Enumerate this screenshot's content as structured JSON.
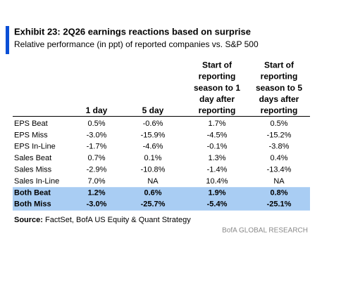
{
  "header": {
    "title": "Exhibit 23: 2Q26 earnings reactions based on surprise",
    "subtitle": "Relative performance (in ppt) of reported companies vs. S&P 500"
  },
  "table": {
    "columns": [
      {
        "lines": [
          "1 day"
        ]
      },
      {
        "lines": [
          "5 day"
        ]
      },
      {
        "lines": [
          "Start of",
          "reporting",
          "season to 1",
          "day after",
          "reporting"
        ]
      },
      {
        "lines": [
          "Start of",
          "reporting",
          "season to 5",
          "days after",
          "reporting"
        ]
      }
    ],
    "rows": [
      {
        "cells": [
          "EPS Beat",
          "0.5%",
          "-0.6%",
          "1.7%",
          "0.5%"
        ]
      },
      {
        "cells": [
          "EPS Miss",
          "-3.0%",
          "-15.9%",
          "-4.5%",
          "-15.2%"
        ]
      },
      {
        "cells": [
          "EPS In-Line",
          "-1.7%",
          "-4.6%",
          "-0.1%",
          "-3.8%"
        ]
      },
      {
        "cells": [
          "Sales Beat",
          "0.7%",
          "0.1%",
          "1.3%",
          "0.4%"
        ]
      },
      {
        "cells": [
          "Sales Miss",
          "-2.9%",
          "-10.8%",
          "-1.4%",
          "-13.4%"
        ]
      },
      {
        "cells": [
          "Sales In-Line",
          "7.0%",
          "NA",
          "10.4%",
          "NA"
        ]
      },
      {
        "cells": [
          "Both Beat",
          "1.2%",
          "0.6%",
          "1.9%",
          "0.8%"
        ],
        "highlight": true
      },
      {
        "cells": [
          "Both Miss",
          "-3.0%",
          "-25.7%",
          "-5.4%",
          "-25.1%"
        ],
        "highlight": true
      }
    ]
  },
  "source": {
    "label": "Source:",
    "text": "FactSet, BofA US Equity & Quant Strategy"
  },
  "footer": "BofA GLOBAL RESEARCH"
}
